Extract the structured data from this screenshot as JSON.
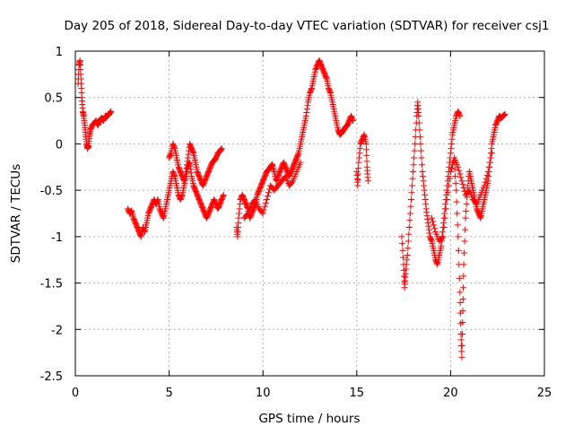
{
  "chart_data": {
    "type": "scatter",
    "title": "Day 205 of 2018, Sidereal Day-to-day VTEC variation (SDTVAR) for receiver csj1",
    "xlabel": "GPS time / hours",
    "ylabel": "SDTVAR / TECUs",
    "xlim": [
      0,
      25
    ],
    "ylim": [
      -2.5,
      1
    ],
    "x_ticks": [
      0,
      5,
      10,
      15,
      20,
      25
    ],
    "x_tick_labels": [
      "0",
      "5",
      "10",
      "15",
      "20",
      "25"
    ],
    "y_ticks": [
      1,
      0.5,
      0,
      -0.5,
      -1,
      -1.5,
      -2,
      -2.5
    ],
    "y_tick_labels": [
      "1",
      "0.5",
      "0",
      "-0.5",
      "-1",
      "-1.5",
      "-2",
      "-2.5"
    ],
    "grid": true,
    "marker": "plus",
    "series": [
      {
        "name": "SDTVAR",
        "color": "#ff0000",
        "segments": [
          [
            [
              0.15,
              0.65
            ],
            [
              0.2,
              0.85
            ],
            [
              0.25,
              0.9
            ],
            [
              0.3,
              0.7
            ],
            [
              0.35,
              0.5
            ],
            [
              0.4,
              0.35
            ],
            [
              0.45,
              0.3
            ],
            [
              0.5,
              0.2
            ],
            [
              0.55,
              0.1
            ],
            [
              0.6,
              0.0
            ],
            [
              0.65,
              -0.05
            ],
            [
              0.7,
              -0.02
            ],
            [
              0.75,
              0.08
            ],
            [
              0.8,
              0.15
            ],
            [
              0.9,
              0.2
            ],
            [
              1.0,
              0.22
            ],
            [
              1.1,
              0.25
            ],
            [
              1.2,
              0.2
            ],
            [
              1.3,
              0.25
            ],
            [
              1.4,
              0.28
            ],
            [
              1.5,
              0.25
            ],
            [
              1.6,
              0.3
            ],
            [
              1.7,
              0.3
            ],
            [
              1.8,
              0.32
            ],
            [
              1.9,
              0.35
            ]
          ],
          [
            [
              2.8,
              -0.7
            ],
            [
              2.9,
              -0.75
            ],
            [
              3.0,
              -0.72
            ],
            [
              3.1,
              -0.8
            ],
            [
              3.2,
              -0.85
            ],
            [
              3.3,
              -0.9
            ],
            [
              3.4,
              -0.95
            ],
            [
              3.5,
              -1.0
            ],
            [
              3.6,
              -0.9
            ],
            [
              3.7,
              -0.95
            ],
            [
              3.8,
              -0.85
            ],
            [
              3.9,
              -0.75
            ],
            [
              4.0,
              -0.7
            ],
            [
              4.1,
              -0.65
            ],
            [
              4.2,
              -0.6
            ],
            [
              4.3,
              -0.65
            ],
            [
              4.4,
              -0.6
            ],
            [
              4.5,
              -0.7
            ],
            [
              4.6,
              -0.75
            ],
            [
              4.7,
              -0.8
            ],
            [
              4.8,
              -0.7
            ],
            [
              4.9,
              -0.6
            ],
            [
              5.0,
              -0.5
            ],
            [
              5.1,
              -0.4
            ],
            [
              5.2,
              -0.3
            ],
            [
              5.3,
              -0.35
            ],
            [
              5.4,
              -0.45
            ],
            [
              5.5,
              -0.55
            ],
            [
              5.6,
              -0.6
            ],
            [
              5.7,
              -0.55
            ],
            [
              5.8,
              -0.45
            ],
            [
              5.9,
              -0.35
            ],
            [
              6.0,
              -0.25
            ],
            [
              6.1,
              -0.2
            ],
            [
              6.2,
              -0.35
            ],
            [
              6.3,
              -0.45
            ],
            [
              6.4,
              -0.5
            ],
            [
              6.5,
              -0.55
            ],
            [
              6.6,
              -0.6
            ],
            [
              6.7,
              -0.65
            ],
            [
              6.8,
              -0.7
            ],
            [
              6.9,
              -0.75
            ],
            [
              7.0,
              -0.8
            ],
            [
              7.1,
              -0.75
            ],
            [
              7.2,
              -0.7
            ],
            [
              7.3,
              -0.65
            ],
            [
              7.4,
              -0.6
            ],
            [
              7.5,
              -0.65
            ],
            [
              7.6,
              -0.7
            ],
            [
              7.7,
              -0.65
            ],
            [
              7.8,
              -0.6
            ],
            [
              7.9,
              -0.55
            ]
          ],
          [
            [
              5.0,
              -0.15
            ],
            [
              5.1,
              -0.1
            ],
            [
              5.2,
              0.0
            ],
            [
              5.3,
              -0.05
            ],
            [
              5.4,
              -0.15
            ],
            [
              5.5,
              -0.25
            ],
            [
              5.6,
              -0.3
            ],
            [
              5.7,
              -0.35
            ],
            [
              5.8,
              -0.4
            ],
            [
              5.9,
              -0.3
            ],
            [
              6.0,
              -0.15
            ],
            [
              6.1,
              0.0
            ],
            [
              6.2,
              -0.05
            ],
            [
              6.3,
              -0.1
            ],
            [
              6.4,
              -0.2
            ],
            [
              6.5,
              -0.3
            ],
            [
              6.6,
              -0.35
            ],
            [
              6.7,
              -0.4
            ],
            [
              6.8,
              -0.45
            ],
            [
              6.9,
              -0.4
            ],
            [
              7.0,
              -0.35
            ],
            [
              7.1,
              -0.3
            ],
            [
              7.2,
              -0.25
            ],
            [
              7.3,
              -0.2
            ],
            [
              7.4,
              -0.18
            ],
            [
              7.5,
              -0.15
            ],
            [
              7.6,
              -0.1
            ],
            [
              7.7,
              -0.08
            ],
            [
              7.8,
              -0.05
            ]
          ],
          [
            [
              8.6,
              -0.9
            ],
            [
              8.65,
              -1.0
            ],
            [
              8.7,
              -0.8
            ],
            [
              8.8,
              -0.6
            ],
            [
              8.9,
              -0.55
            ],
            [
              9.0,
              -0.6
            ],
            [
              9.1,
              -0.65
            ],
            [
              9.2,
              -0.7
            ],
            [
              9.3,
              -0.8
            ],
            [
              9.4,
              -0.75
            ],
            [
              9.5,
              -0.7
            ],
            [
              9.6,
              -0.65
            ],
            [
              9.7,
              -0.55
            ],
            [
              9.8,
              -0.5
            ],
            [
              9.9,
              -0.45
            ],
            [
              10.0,
              -0.4
            ],
            [
              10.1,
              -0.35
            ],
            [
              10.2,
              -0.3
            ],
            [
              10.3,
              -0.28
            ],
            [
              10.4,
              -0.25
            ],
            [
              10.5,
              -0.22
            ],
            [
              10.6,
              -0.3
            ],
            [
              10.7,
              -0.4
            ],
            [
              10.8,
              -0.35
            ],
            [
              10.9,
              -0.3
            ],
            [
              11.0,
              -0.25
            ],
            [
              11.1,
              -0.2
            ],
            [
              11.2,
              -0.25
            ],
            [
              11.3,
              -0.3
            ],
            [
              11.4,
              -0.35
            ],
            [
              11.5,
              -0.3
            ],
            [
              11.6,
              -0.25
            ],
            [
              11.7,
              -0.2
            ],
            [
              11.8,
              -0.15
            ],
            [
              11.9,
              -0.1
            ],
            [
              12.0,
              0.0
            ],
            [
              12.1,
              0.1
            ],
            [
              12.2,
              0.2
            ],
            [
              12.3,
              0.3
            ],
            [
              12.4,
              0.45
            ],
            [
              12.5,
              0.55
            ],
            [
              12.6,
              0.6
            ],
            [
              12.7,
              0.7
            ],
            [
              12.8,
              0.8
            ],
            [
              12.9,
              0.85
            ],
            [
              13.0,
              0.9
            ],
            [
              13.1,
              0.85
            ],
            [
              13.2,
              0.8
            ],
            [
              13.3,
              0.75
            ],
            [
              13.4,
              0.7
            ],
            [
              13.5,
              0.6
            ],
            [
              13.6,
              0.55
            ],
            [
              13.7,
              0.45
            ],
            [
              13.8,
              0.35
            ],
            [
              13.9,
              0.25
            ],
            [
              14.0,
              0.15
            ],
            [
              14.1,
              0.1
            ],
            [
              14.2,
              0.12
            ],
            [
              14.3,
              0.15
            ],
            [
              14.4,
              0.18
            ],
            [
              14.5,
              0.2
            ],
            [
              14.6,
              0.25
            ],
            [
              14.7,
              0.3
            ],
            [
              14.8,
              0.25
            ]
          ],
          [
            [
              9.0,
              -0.8
            ],
            [
              9.2,
              -0.75
            ],
            [
              9.4,
              -0.65
            ],
            [
              9.6,
              -0.6
            ],
            [
              9.8,
              -0.7
            ],
            [
              10.0,
              -0.75
            ],
            [
              10.2,
              -0.6
            ],
            [
              10.4,
              -0.45
            ],
            [
              10.6,
              -0.5
            ],
            [
              10.8,
              -0.45
            ],
            [
              11.0,
              -0.4
            ],
            [
              11.2,
              -0.35
            ],
            [
              11.4,
              -0.45
            ],
            [
              11.6,
              -0.4
            ],
            [
              11.8,
              -0.3
            ],
            [
              12.0,
              -0.2
            ]
          ],
          [
            [
              15.0,
              -0.3
            ],
            [
              15.05,
              -0.45
            ],
            [
              15.1,
              -0.2
            ],
            [
              15.2,
              0.0
            ],
            [
              15.3,
              0.05
            ],
            [
              15.4,
              0.1
            ],
            [
              15.5,
              0.0
            ],
            [
              15.55,
              -0.25
            ],
            [
              15.6,
              -0.4
            ]
          ],
          [
            [
              17.4,
              -1.0
            ],
            [
              17.5,
              -1.3
            ],
            [
              17.55,
              -1.55
            ],
            [
              17.6,
              -1.4
            ],
            [
              17.7,
              -1.2
            ],
            [
              17.8,
              -0.9
            ],
            [
              17.9,
              -0.6
            ],
            [
              18.0,
              -0.3
            ],
            [
              18.1,
              0.0
            ],
            [
              18.2,
              0.3
            ],
            [
              18.25,
              0.45
            ],
            [
              18.3,
              0.3
            ],
            [
              18.4,
              0.0
            ],
            [
              18.5,
              -0.3
            ],
            [
              18.6,
              -0.5
            ],
            [
              18.7,
              -0.7
            ],
            [
              18.8,
              -0.85
            ],
            [
              18.9,
              -1.0
            ],
            [
              19.0,
              -1.05
            ],
            [
              19.1,
              -1.15
            ],
            [
              19.2,
              -1.25
            ],
            [
              19.3,
              -1.3
            ],
            [
              19.4,
              -1.2
            ],
            [
              19.5,
              -1.1
            ],
            [
              19.6,
              -0.9
            ],
            [
              19.7,
              -0.7
            ],
            [
              19.8,
              -0.5
            ],
            [
              19.9,
              -0.3
            ],
            [
              20.0,
              -0.1
            ],
            [
              20.1,
              0.1
            ],
            [
              20.2,
              0.2
            ],
            [
              20.3,
              0.3
            ],
            [
              20.4,
              0.35
            ],
            [
              20.5,
              0.3
            ]
          ],
          [
            [
              20.2,
              -0.2
            ],
            [
              20.3,
              -0.5
            ],
            [
              20.4,
              -1.0
            ],
            [
              20.5,
              -1.6
            ],
            [
              20.55,
              -2.05
            ],
            [
              20.6,
              -2.3
            ],
            [
              20.65,
              -1.8
            ],
            [
              20.7,
              -1.3
            ],
            [
              20.8,
              -0.8
            ],
            [
              20.9,
              -0.5
            ],
            [
              21.0,
              -0.3
            ],
            [
              21.1,
              -0.4
            ],
            [
              21.2,
              -0.5
            ],
            [
              21.3,
              -0.6
            ],
            [
              21.4,
              -0.7
            ],
            [
              21.5,
              -0.75
            ],
            [
              21.6,
              -0.8
            ],
            [
              21.7,
              -0.7
            ],
            [
              21.8,
              -0.6
            ],
            [
              21.9,
              -0.5
            ],
            [
              22.0,
              -0.4
            ],
            [
              22.1,
              -0.2
            ],
            [
              22.2,
              0.0
            ],
            [
              22.3,
              0.1
            ],
            [
              22.4,
              0.2
            ],
            [
              22.5,
              0.25
            ],
            [
              22.6,
              0.3
            ],
            [
              22.7,
              0.28
            ],
            [
              22.8,
              0.3
            ],
            [
              22.9,
              0.32
            ]
          ],
          [
            [
              19.0,
              -0.8
            ],
            [
              19.2,
              -0.95
            ],
            [
              19.4,
              -1.05
            ],
            [
              19.6,
              -1.0
            ],
            [
              19.8,
              -0.6
            ],
            [
              20.0,
              -0.3
            ],
            [
              20.2,
              -0.15
            ],
            [
              20.4,
              -0.25
            ],
            [
              20.6,
              -0.4
            ],
            [
              20.8,
              -0.55
            ],
            [
              21.0,
              -0.5
            ],
            [
              21.2,
              -0.6
            ],
            [
              21.4,
              -0.65
            ],
            [
              21.6,
              -0.55
            ],
            [
              21.8,
              -0.45
            ],
            [
              22.0,
              -0.3
            ],
            [
              22.2,
              -0.1
            ]
          ]
        ]
      }
    ]
  }
}
